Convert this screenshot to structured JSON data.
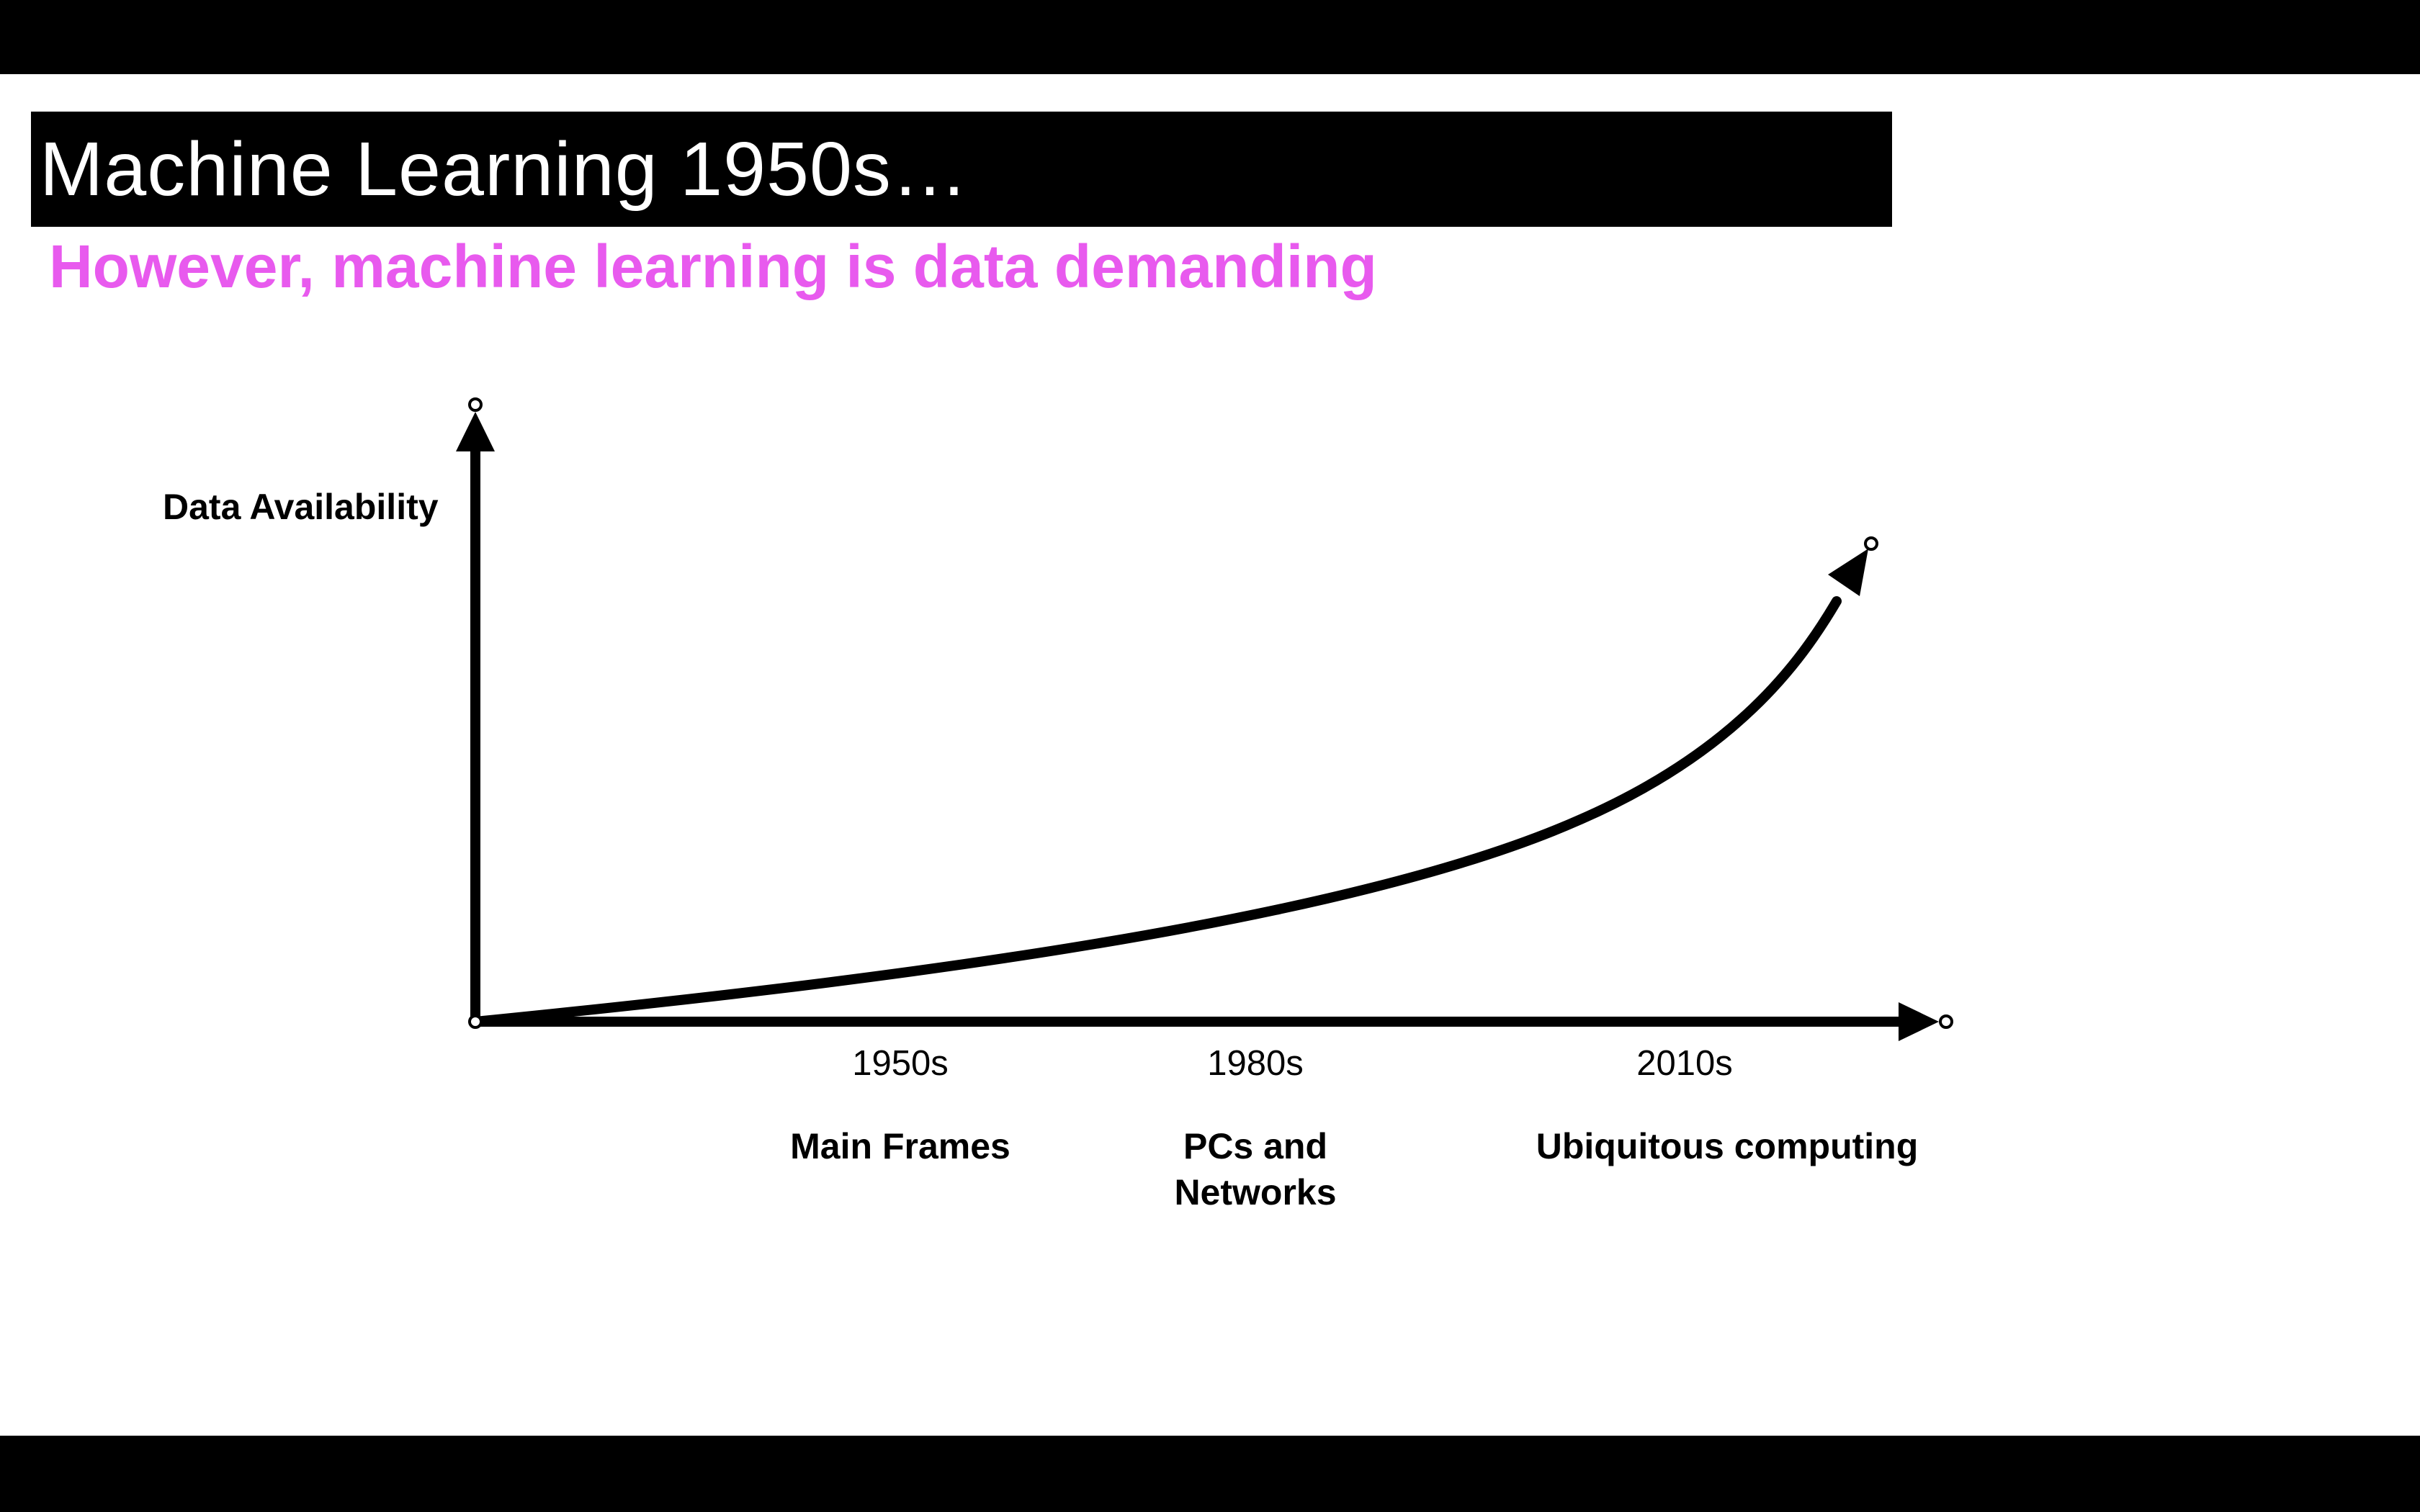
{
  "slide": {
    "title": "Machine Learning 1950s…",
    "subtitle": "However, machine learning is data demanding",
    "subtitle_color": "#e85aee"
  },
  "diagram": {
    "y_axis_label": "Data Availability",
    "eras": [
      {
        "year": "1950s",
        "label": "Main Frames"
      },
      {
        "year": "1980s",
        "label": "PCs and Networks"
      },
      {
        "year": "2010s",
        "label": "Ubiquitous computing"
      }
    ],
    "curve_shape": "exponential-growth",
    "axis_color": "#000000"
  }
}
